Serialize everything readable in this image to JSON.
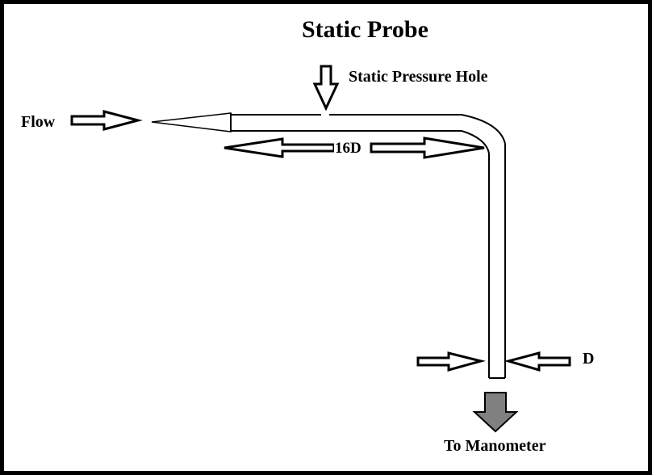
{
  "diagram": {
    "title": "Static Probe",
    "labels": {
      "flow": "Flow",
      "static_pressure_hole": "Static Pressure Hole",
      "length": "16D",
      "diameter": "D",
      "to_manometer": "To Manometer"
    },
    "colors": {
      "frame": "#000000",
      "background": "#ffffff",
      "outlet_arrow": "#808080"
    }
  }
}
